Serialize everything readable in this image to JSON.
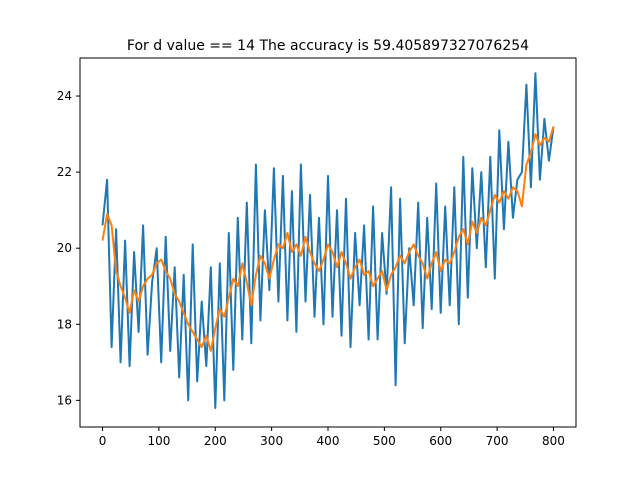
{
  "chart_data": {
    "type": "line",
    "title": "For d value == 14  The accuracy is 59.405897327076254",
    "xlabel": "",
    "ylabel": "",
    "xlim": [
      -40,
      840
    ],
    "ylim": [
      15.3,
      25.0
    ],
    "xticks": [
      0,
      100,
      200,
      300,
      400,
      500,
      600,
      700,
      800
    ],
    "yticks": [
      16,
      18,
      20,
      22,
      24
    ],
    "grid": false,
    "legend": "none",
    "series": [
      {
        "color": "#1f77b4",
        "x": [
          0,
          8,
          16,
          24,
          32,
          40,
          48,
          56,
          64,
          72,
          80,
          88,
          96,
          104,
          112,
          120,
          128,
          136,
          144,
          152,
          160,
          168,
          176,
          184,
          192,
          200,
          208,
          216,
          224,
          232,
          240,
          248,
          256,
          264,
          272,
          280,
          288,
          296,
          304,
          312,
          320,
          328,
          336,
          344,
          352,
          360,
          368,
          376,
          384,
          392,
          400,
          408,
          416,
          424,
          432,
          440,
          448,
          456,
          464,
          472,
          480,
          488,
          496,
          504,
          512,
          520,
          528,
          536,
          544,
          552,
          560,
          568,
          576,
          584,
          592,
          600,
          608,
          616,
          624,
          632,
          640,
          648,
          656,
          664,
          672,
          680,
          688,
          696,
          704,
          712,
          720,
          728,
          736,
          744,
          752,
          760,
          768,
          776,
          784,
          792,
          800
        ],
        "y": [
          20.6,
          21.8,
          17.4,
          20.5,
          17.0,
          20.2,
          16.9,
          19.9,
          17.8,
          20.6,
          17.2,
          19.1,
          20.0,
          17.0,
          20.3,
          17.3,
          19.5,
          16.6,
          19.3,
          16.0,
          20.1,
          16.5,
          18.6,
          16.9,
          19.5,
          15.8,
          19.6,
          16.0,
          20.4,
          16.8,
          20.8,
          17.6,
          21.2,
          17.5,
          22.2,
          18.1,
          21.0,
          18.9,
          22.1,
          18.6,
          21.9,
          18.1,
          21.5,
          17.8,
          22.2,
          18.6,
          21.4,
          18.2,
          20.8,
          18.0,
          21.9,
          18.2,
          21.0,
          17.7,
          21.3,
          17.4,
          20.4,
          18.5,
          20.6,
          17.6,
          21.1,
          17.6,
          20.4,
          18.8,
          21.6,
          16.4,
          21.3,
          17.5,
          20.0,
          18.5,
          21.2,
          17.9,
          20.8,
          18.4,
          21.7,
          18.3,
          21.1,
          18.5,
          21.6,
          18.0,
          22.4,
          18.7,
          22.1,
          20.0,
          22.0,
          19.5,
          22.4,
          19.2,
          23.1,
          20.5,
          22.8,
          20.8,
          21.8,
          22.0,
          24.3,
          21.6,
          24.6,
          21.8,
          23.4,
          22.3,
          23.2
        ]
      },
      {
        "color": "#ff7f0e",
        "x": [
          0,
          8,
          16,
          24,
          32,
          40,
          48,
          56,
          64,
          72,
          80,
          88,
          96,
          104,
          112,
          120,
          128,
          136,
          144,
          152,
          160,
          168,
          176,
          184,
          192,
          200,
          208,
          216,
          224,
          232,
          240,
          248,
          256,
          264,
          272,
          280,
          288,
          296,
          304,
          312,
          320,
          328,
          336,
          344,
          352,
          360,
          368,
          376,
          384,
          392,
          400,
          408,
          416,
          424,
          432,
          440,
          448,
          456,
          464,
          472,
          480,
          488,
          496,
          504,
          512,
          520,
          528,
          536,
          544,
          552,
          560,
          568,
          576,
          584,
          592,
          600,
          608,
          616,
          624,
          632,
          640,
          648,
          656,
          664,
          672,
          680,
          688,
          696,
          704,
          712,
          720,
          728,
          736,
          744,
          752,
          760,
          768,
          776,
          784,
          792,
          800
        ],
        "y": [
          20.2,
          20.9,
          20.6,
          19.4,
          19.0,
          18.7,
          18.3,
          18.9,
          18.6,
          19.0,
          19.2,
          19.3,
          19.6,
          19.7,
          19.4,
          19.2,
          18.8,
          18.6,
          18.3,
          18.0,
          17.8,
          17.6,
          17.4,
          17.7,
          17.3,
          17.9,
          18.4,
          18.2,
          18.7,
          19.2,
          19.0,
          19.6,
          19.1,
          18.5,
          19.3,
          19.8,
          19.6,
          19.2,
          19.7,
          20.1,
          20.0,
          20.4,
          19.9,
          20.1,
          19.8,
          20.3,
          19.9,
          19.6,
          19.4,
          19.7,
          20.1,
          19.9,
          19.5,
          19.9,
          19.6,
          19.2,
          19.5,
          19.7,
          19.3,
          19.4,
          19.0,
          19.2,
          19.4,
          18.9,
          19.3,
          19.5,
          19.8,
          19.6,
          19.9,
          20.1,
          19.8,
          19.6,
          19.2,
          19.6,
          19.9,
          19.4,
          19.7,
          19.6,
          19.9,
          20.3,
          20.5,
          20.1,
          20.7,
          20.4,
          20.8,
          20.6,
          21.0,
          21.4,
          21.2,
          21.5,
          21.3,
          21.6,
          21.5,
          21.1,
          22.2,
          22.5,
          23.0,
          22.7,
          22.9,
          22.8,
          23.2
        ]
      }
    ]
  }
}
